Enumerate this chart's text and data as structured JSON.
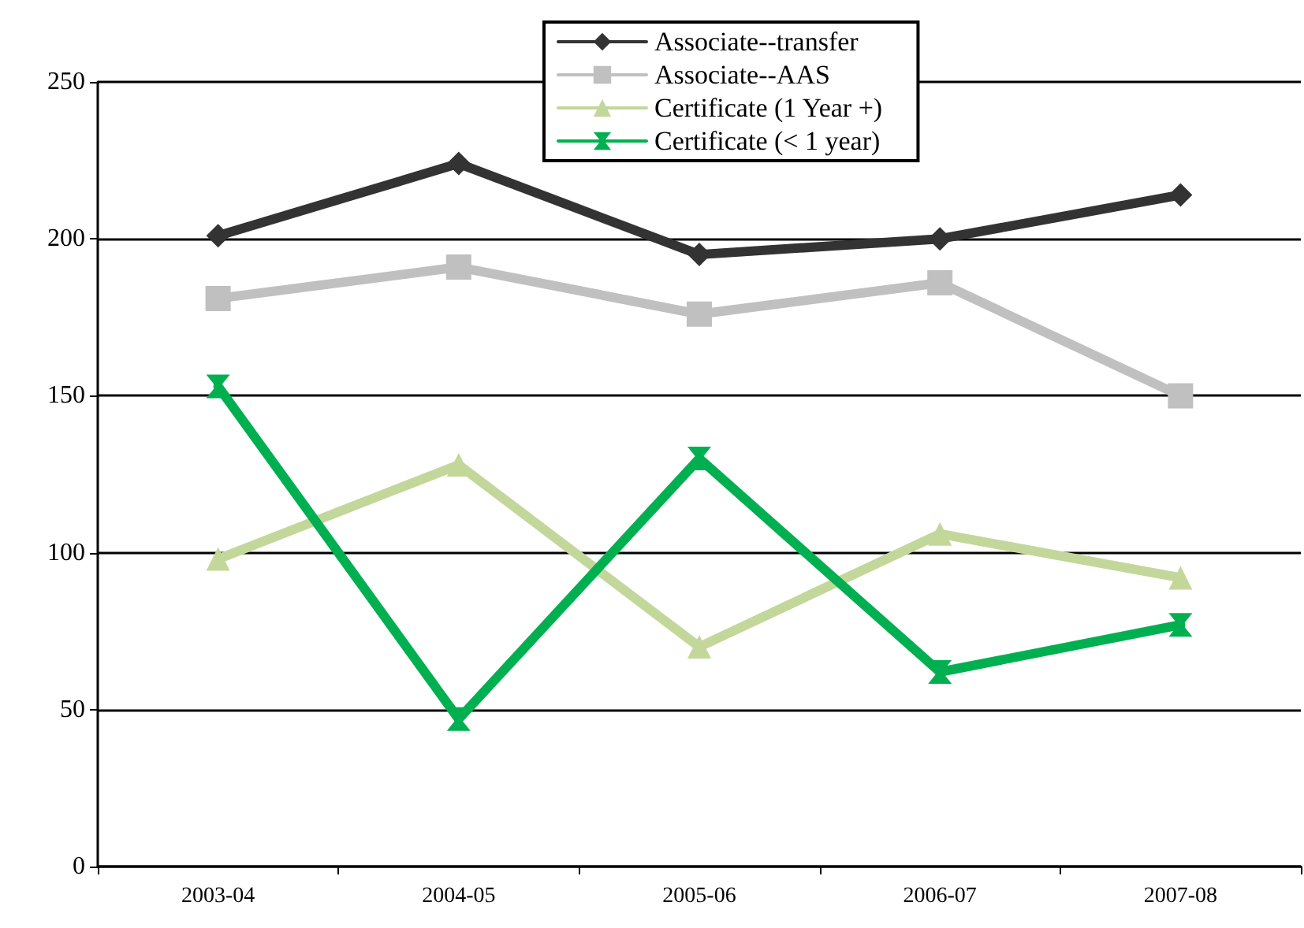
{
  "chart_data": {
    "type": "line",
    "categories": [
      "2003-04",
      "2004-05",
      "2005-06",
      "2006-07",
      "2007-08"
    ],
    "ylim": [
      0,
      250
    ],
    "yticks": [
      0,
      50,
      100,
      150,
      200,
      250
    ],
    "grid": "y",
    "legend": "top right",
    "series": [
      {
        "name": "Associate--transfer",
        "color": "#333333",
        "marker": "diamond",
        "values": [
          201,
          224,
          195,
          200,
          214
        ]
      },
      {
        "name": "Associate--AAS",
        "color": "#c0c0c0",
        "marker": "square",
        "values": [
          181,
          191,
          176,
          186,
          150
        ]
      },
      {
        "name": "Certificate (1 Year +)",
        "color": "#c4d79b",
        "marker": "triangle",
        "values": [
          98,
          128,
          70,
          106,
          92
        ]
      },
      {
        "name": "Certificate (< 1 year)",
        "color": "#00b050",
        "marker": "star",
        "values": [
          153,
          47,
          130,
          62,
          77
        ]
      }
    ]
  }
}
